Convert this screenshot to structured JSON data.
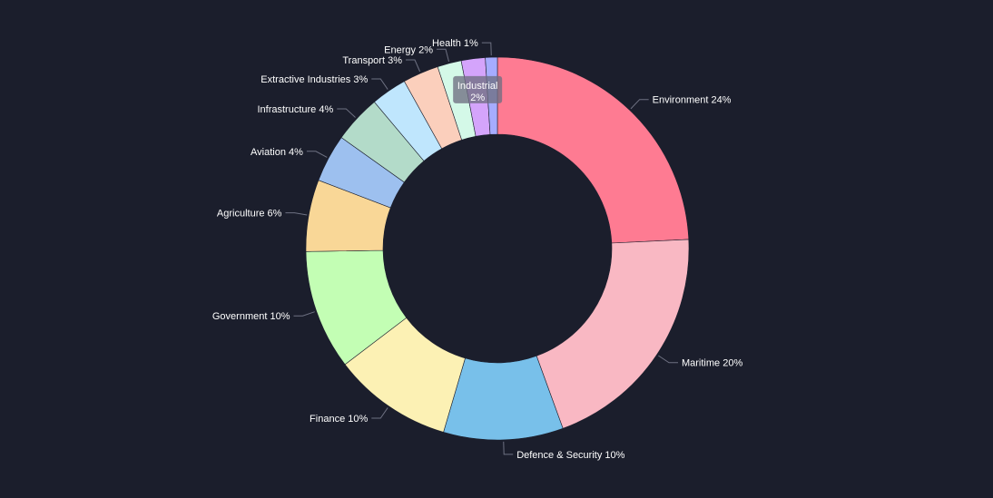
{
  "chart_data": {
    "type": "pie",
    "variant": "donut",
    "slices": [
      {
        "label": "Environment",
        "pct_label": "24%",
        "value": 24,
        "color": "#fe7b92"
      },
      {
        "label": "Maritime",
        "pct_label": "20%",
        "value": 20,
        "color": "#f9b8c3"
      },
      {
        "label": "Defence & Security",
        "pct_label": "10%",
        "value": 10,
        "color": "#78c0ea"
      },
      {
        "label": "Finance",
        "pct_label": "10%",
        "value": 10,
        "color": "#fcf1b4"
      },
      {
        "label": "Government",
        "pct_label": "10%",
        "value": 10,
        "color": "#c3feb4"
      },
      {
        "label": "Agriculture",
        "pct_label": "6%",
        "value": 6,
        "color": "#f9d797"
      },
      {
        "label": "Aviation",
        "pct_label": "4%",
        "value": 4,
        "color": "#9dc0ef"
      },
      {
        "label": "Infrastructure",
        "pct_label": "4%",
        "value": 4,
        "color": "#b3dbc9"
      },
      {
        "label": "Extractive Industries",
        "pct_label": "3%",
        "value": 3,
        "color": "#bfe6fd"
      },
      {
        "label": "Transport",
        "pct_label": "3%",
        "value": 3,
        "color": "#fbcfbc"
      },
      {
        "label": "Energy",
        "pct_label": "2%",
        "value": 2,
        "color": "#d4f9e8"
      },
      {
        "label": "Industrial",
        "pct_label": "2%",
        "value": 2,
        "color": "#d4a4fb",
        "inside_label": true
      },
      {
        "label": "Health",
        "pct_label": "1%",
        "value": 1,
        "color": "#a6acff"
      }
    ],
    "legend": "none",
    "background_color": "#1b1e2c",
    "label_color": "#ffffff"
  }
}
